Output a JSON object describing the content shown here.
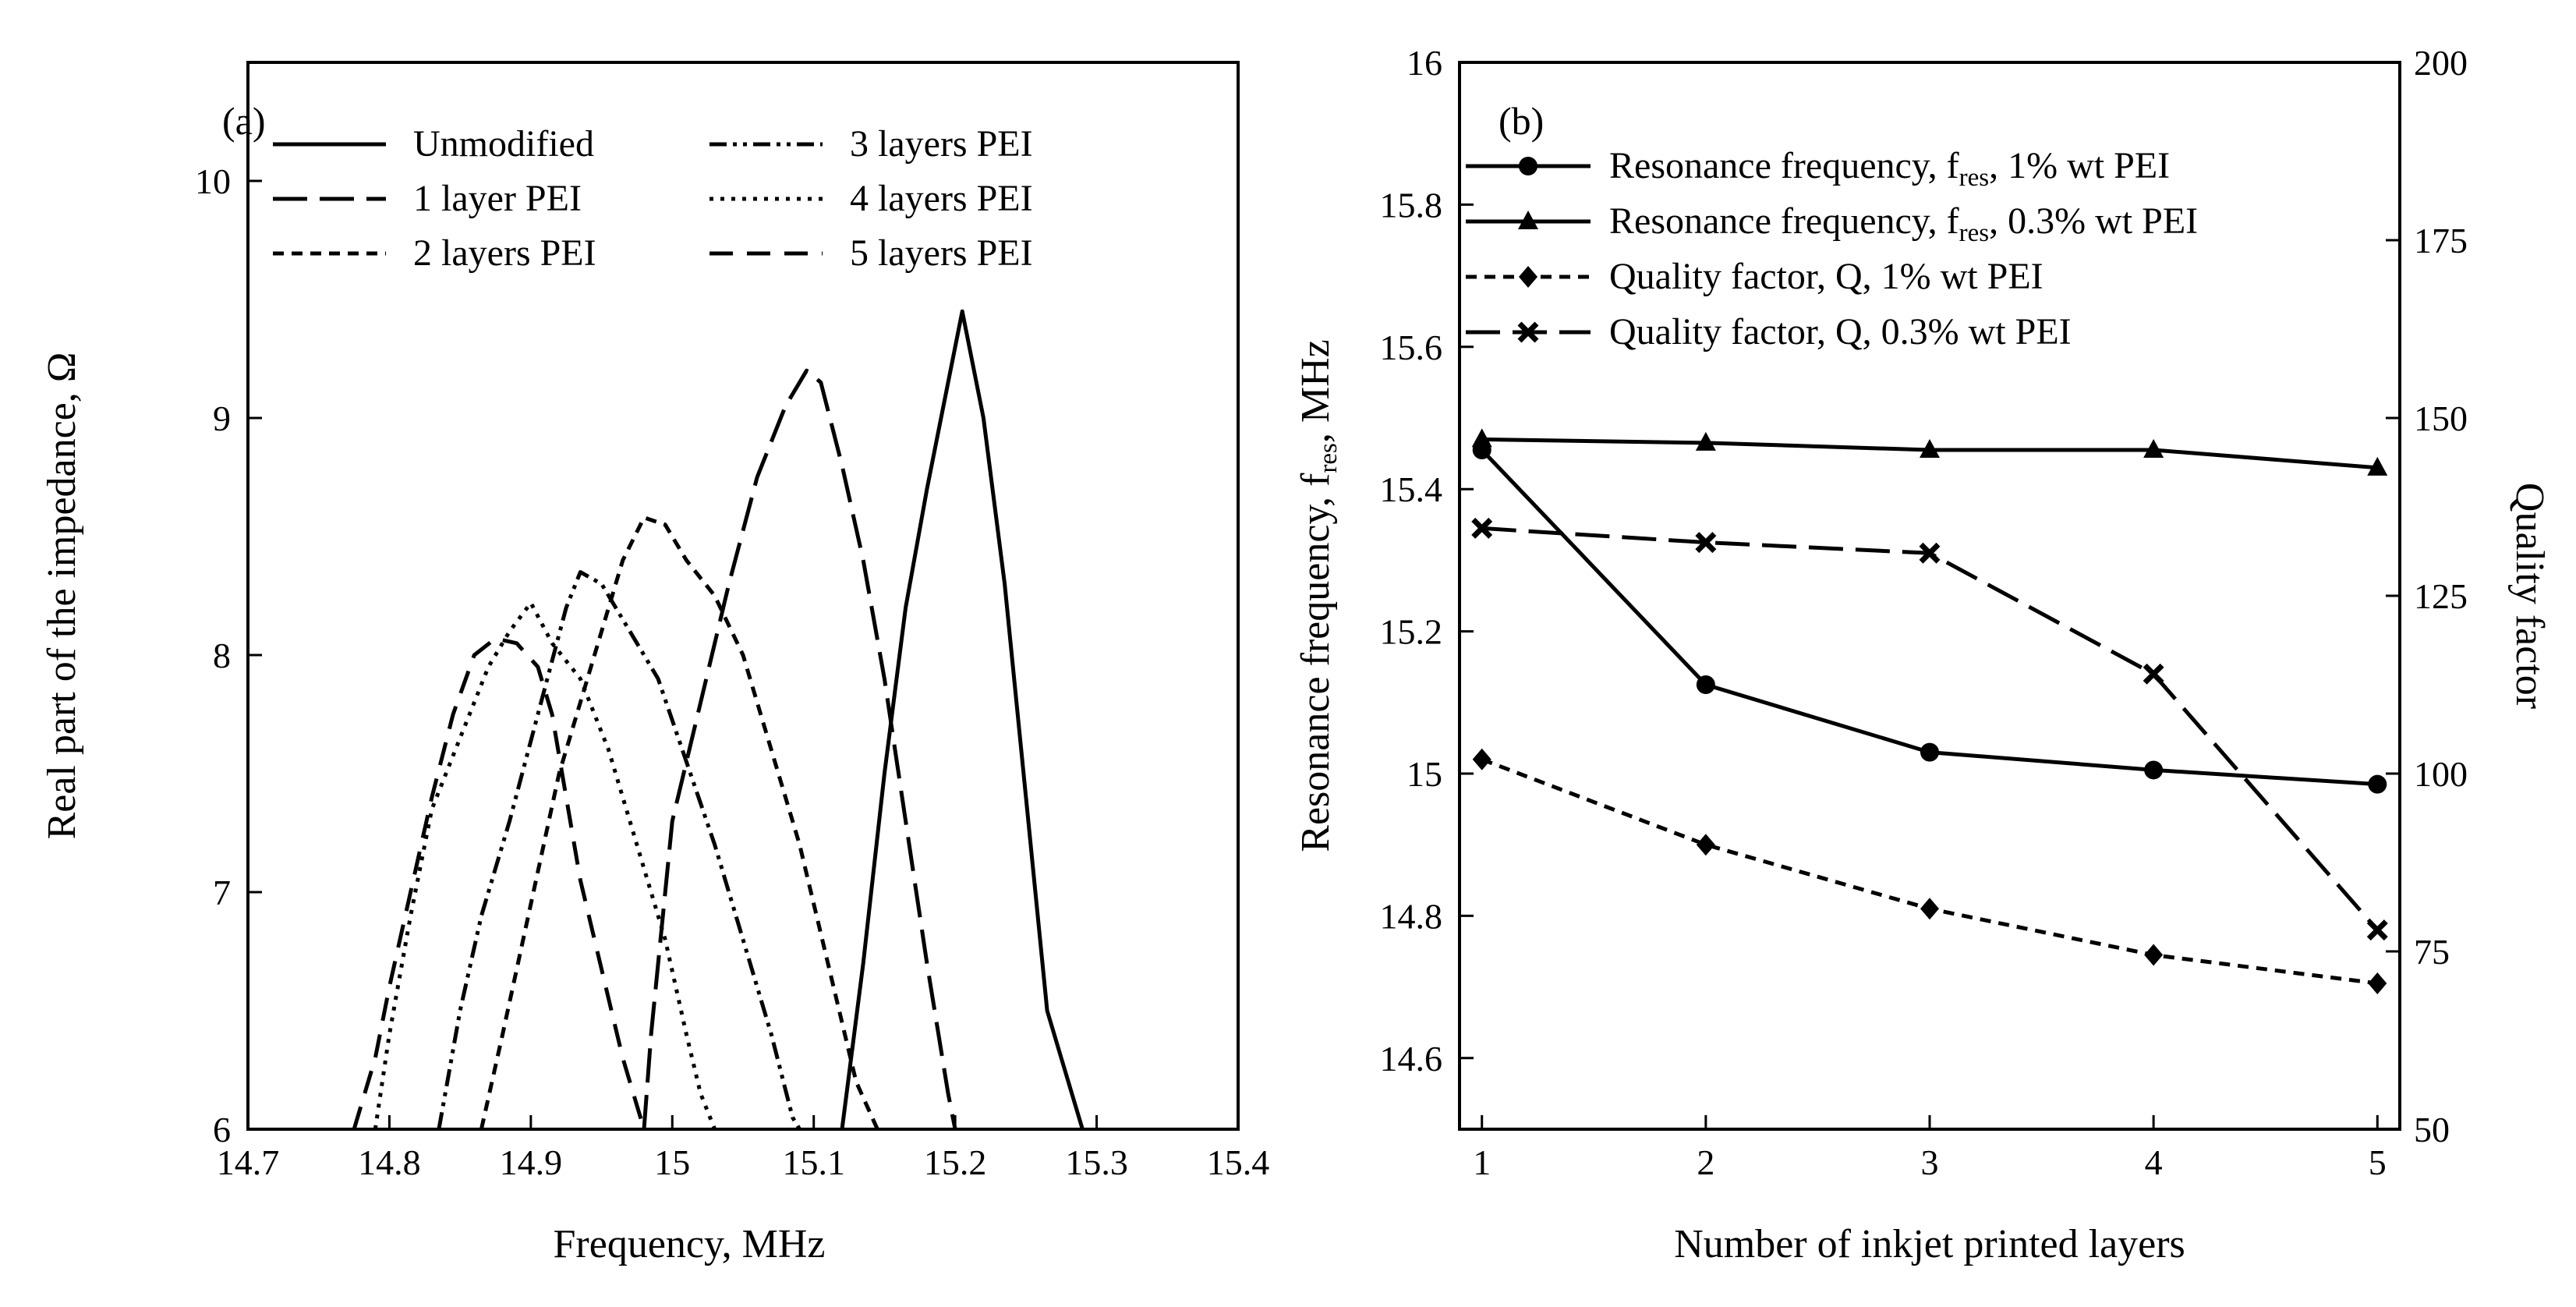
{
  "chart_data": [
    {
      "type": "line",
      "panel_label": "(a)",
      "xlabel": "Frequency, MHz",
      "ylabel": "Real part of the impedance, Ω",
      "xlim": [
        14.7,
        15.4
      ],
      "ylim": [
        6,
        10.5
      ],
      "xticks": [
        14.7,
        14.8,
        14.9,
        15,
        15.1,
        15.2,
        15.3,
        15.4
      ],
      "xtick_labels": [
        "14.7",
        "14.8",
        "14.9",
        "15",
        "15.1",
        "15.2",
        "15.3",
        "15.4"
      ],
      "yticks": [
        6,
        7,
        8,
        9,
        10
      ],
      "ytick_labels": [
        "6",
        "7",
        "8",
        "9",
        "10"
      ],
      "legend_position": "top-left",
      "series": [
        {
          "name": "Unmodified",
          "style": "solid",
          "x": [
            15.12,
            15.135,
            15.15,
            15.165,
            15.18,
            15.19,
            15.205,
            15.22,
            15.235,
            15.25,
            15.265,
            15.275,
            15.29
          ],
          "y": [
            6,
            6.7,
            7.5,
            8.2,
            8.7,
            9.0,
            9.45,
            9.0,
            8.3,
            7.4,
            6.5,
            6.3,
            6.0
          ]
        },
        {
          "name": "1 layer PEI",
          "style": "longdash",
          "x": [
            14.98,
            14.985,
            15.0,
            15.02,
            15.04,
            15.06,
            15.08,
            15.095,
            15.105,
            15.12,
            15.135,
            15.15,
            15.165,
            15.18,
            15.195,
            15.2
          ],
          "y": [
            6,
            6.4,
            7.3,
            7.8,
            8.3,
            8.75,
            9.05,
            9.2,
            9.15,
            8.8,
            8.4,
            7.9,
            7.3,
            6.7,
            6.15,
            6.0
          ]
        },
        {
          "name": "2 layers PEI",
          "style": "shortdash",
          "x": [
            14.865,
            14.88,
            14.9,
            14.92,
            14.945,
            14.965,
            14.98,
            14.995,
            15.01,
            15.03,
            15.05,
            15.07,
            15.09,
            15.11,
            15.13,
            15.145
          ],
          "y": [
            6,
            6.4,
            6.95,
            7.5,
            8.0,
            8.4,
            8.58,
            8.55,
            8.4,
            8.25,
            8.0,
            7.6,
            7.2,
            6.7,
            6.2,
            6.0
          ]
        },
        {
          "name": "3 layers PEI",
          "style": "dashdotdot",
          "x": [
            14.835,
            14.85,
            14.865,
            14.885,
            14.905,
            14.925,
            14.935,
            14.95,
            14.97,
            14.99,
            15.01,
            15.03,
            15.05,
            15.07,
            15.085,
            15.09
          ],
          "y": [
            6,
            6.5,
            6.9,
            7.3,
            7.75,
            8.2,
            8.35,
            8.3,
            8.1,
            7.9,
            7.55,
            7.2,
            6.8,
            6.4,
            6.05,
            6.0
          ]
        },
        {
          "name": "4 layers PEI",
          "style": "dotted",
          "x": [
            14.79,
            14.8,
            14.815,
            14.83,
            14.85,
            14.87,
            14.885,
            14.9,
            14.915,
            14.935,
            14.955,
            14.975,
            14.995,
            15.01,
            15.02,
            15.03
          ],
          "y": [
            6,
            6.4,
            6.9,
            7.35,
            7.65,
            7.95,
            8.1,
            8.22,
            8.05,
            7.9,
            7.6,
            7.2,
            6.8,
            6.4,
            6.15,
            6.0
          ]
        },
        {
          "name": "5 layers PEI",
          "style": "dashed",
          "x": [
            14.775,
            14.79,
            14.8,
            14.815,
            14.83,
            14.845,
            14.86,
            14.875,
            14.89,
            14.905,
            14.915,
            14.925,
            14.935,
            14.945,
            14.955,
            14.965,
            14.975,
            14.98
          ],
          "y": [
            6,
            6.3,
            6.6,
            7.0,
            7.4,
            7.75,
            8.0,
            8.07,
            8.05,
            7.95,
            7.75,
            7.4,
            7.05,
            6.8,
            6.55,
            6.3,
            6.1,
            6.0
          ]
        }
      ]
    },
    {
      "type": "line",
      "panel_label": "(b)",
      "xlabel": "Number of inkjet printed layers",
      "ylabel_left": "Resonance frequency, f",
      "ylabel_left_sub": "res",
      "ylabel_left_suffix": ", MHz",
      "ylabel_right": "Quality factor",
      "xlim": [
        0.9,
        5.1
      ],
      "ylim_left": [
        14.5,
        16
      ],
      "ylim_right": [
        50,
        200
      ],
      "xticks": [
        1,
        2,
        3,
        4,
        5
      ],
      "xtick_labels": [
        "1",
        "2",
        "3",
        "4",
        "5"
      ],
      "yticks_left": [
        14.6,
        14.8,
        15,
        15.2,
        15.4,
        15.6,
        15.8,
        16
      ],
      "ytick_left_labels": [
        "14.6",
        "14.8",
        "15",
        "15.2",
        "15.4",
        "15.6",
        "15.8",
        "16"
      ],
      "yticks_right": [
        50,
        75,
        100,
        125,
        150,
        175,
        200
      ],
      "ytick_right_labels": [
        "50",
        "75",
        "100",
        "125",
        "150",
        "175",
        "200"
      ],
      "legend_position": "top-left",
      "series": [
        {
          "name_prefix": "Resonance frequency, f",
          "name_sub": "res",
          "name_suffix": ", 1% wt PEI",
          "axis": "left",
          "marker": "circle",
          "style": "solid",
          "x": [
            1,
            2,
            3,
            4,
            5
          ],
          "values": [
            15.455,
            15.125,
            15.03,
            15.005,
            14.985
          ]
        },
        {
          "name_prefix": "Resonance frequency, f",
          "name_sub": "res",
          "name_suffix": ", 0.3% wt PEI",
          "axis": "left",
          "marker": "triangle",
          "style": "solid",
          "x": [
            1,
            2,
            3,
            4,
            5
          ],
          "values": [
            15.47,
            15.465,
            15.455,
            15.455,
            15.43
          ]
        },
        {
          "name_prefix": "Quality factor, Q, 1% wt PEI",
          "name_sub": "",
          "name_suffix": "",
          "axis": "right",
          "marker": "diamond",
          "style": "shortdash",
          "x": [
            1,
            2,
            3,
            4,
            5
          ],
          "values": [
            102,
            90,
            81,
            74.5,
            70.5
          ]
        },
        {
          "name_prefix": "Quality factor, Q, 0.3% wt PEI",
          "name_sub": "",
          "name_suffix": "",
          "axis": "right",
          "marker": "x",
          "style": "longdash",
          "x": [
            1,
            2,
            3,
            4,
            5
          ],
          "values": [
            134.5,
            132.5,
            131,
            114,
            78
          ]
        }
      ]
    }
  ]
}
